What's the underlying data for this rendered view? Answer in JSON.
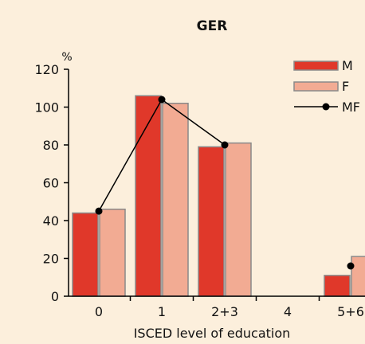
{
  "chart_data": {
    "type": "bar",
    "title": "GER",
    "xlabel": "ISCED level of education",
    "ylabel": "%",
    "categories": [
      "0",
      "1",
      "2+3",
      "4",
      "5+6"
    ],
    "ylim": [
      0,
      120
    ],
    "yticks": [
      0,
      20,
      40,
      60,
      80,
      100,
      120
    ],
    "grid": false,
    "legend_position": "top-right",
    "series": [
      {
        "name": "M",
        "kind": "bar",
        "color": "#e0382a",
        "values": [
          44,
          106,
          79,
          null,
          11
        ]
      },
      {
        "name": "F",
        "kind": "bar",
        "color": "#f2ab93",
        "values": [
          46,
          102,
          81,
          null,
          21
        ]
      },
      {
        "name": "MF",
        "kind": "line",
        "color": "#000000",
        "values": [
          45,
          104,
          80,
          null,
          16
        ]
      }
    ]
  }
}
